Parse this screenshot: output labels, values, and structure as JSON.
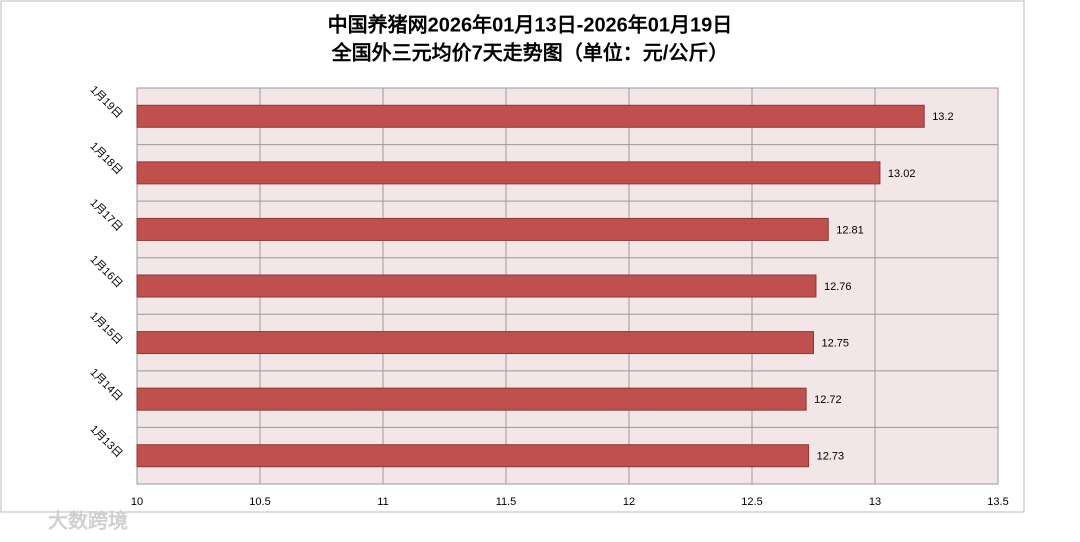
{
  "chart_data": {
    "type": "hbar",
    "title": "中国养猪网2026年01月13日-2026年01月19日",
    "subtitle": "全国外三元均价7天走势图（单位：元/公斤）",
    "categories": [
      "1月19日",
      "1月18日",
      "1月17日",
      "1月16日",
      "1月15日",
      "1月14日",
      "1月13日"
    ],
    "values": [
      13.2,
      13.02,
      12.81,
      12.76,
      12.75,
      12.72,
      12.73
    ],
    "color": "#c0504d",
    "xlim": [
      10,
      13.5
    ],
    "xticks": [
      10,
      10.5,
      11,
      11.5,
      12,
      12.5,
      13,
      13.5
    ],
    "grid": true,
    "watermark": "大数跨境"
  }
}
